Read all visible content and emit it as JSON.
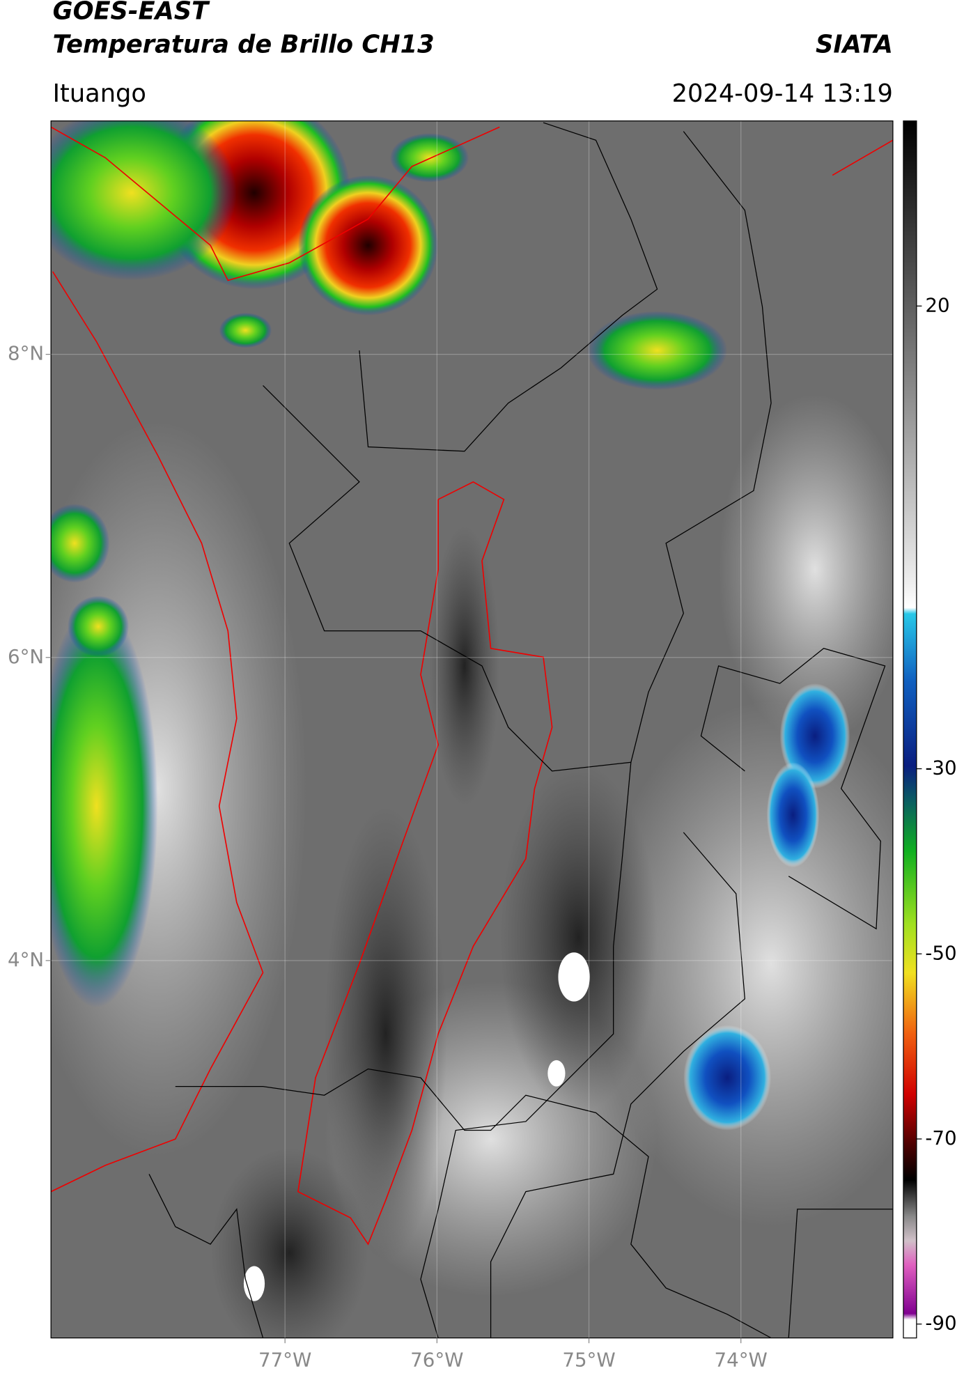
{
  "header": {
    "title": "GOES-EAST",
    "subtitle": "Temperatura de Brillo CH13",
    "source": "SIATA",
    "region": "Ituango",
    "timestamp": "2024-09-14 13:19"
  },
  "map": {
    "xlim": [
      -78.54,
      -73.0
    ],
    "ylim": [
      1.51,
      9.54
    ],
    "xticks": [
      {
        "value": -77,
        "label": "77°W"
      },
      {
        "value": -76,
        "label": "76°W"
      },
      {
        "value": -75,
        "label": "75°W"
      },
      {
        "value": -74,
        "label": "74°W"
      }
    ],
    "yticks": [
      {
        "value": 8,
        "label": "8°N"
      },
      {
        "value": 6,
        "label": "6°N"
      },
      {
        "value": 4,
        "label": "4°N"
      }
    ],
    "grid": true
  },
  "colorbar": {
    "lim": [
      -91.5,
      40
    ],
    "ticks": [
      20,
      -30,
      -50,
      -70,
      -90
    ]
  }
}
